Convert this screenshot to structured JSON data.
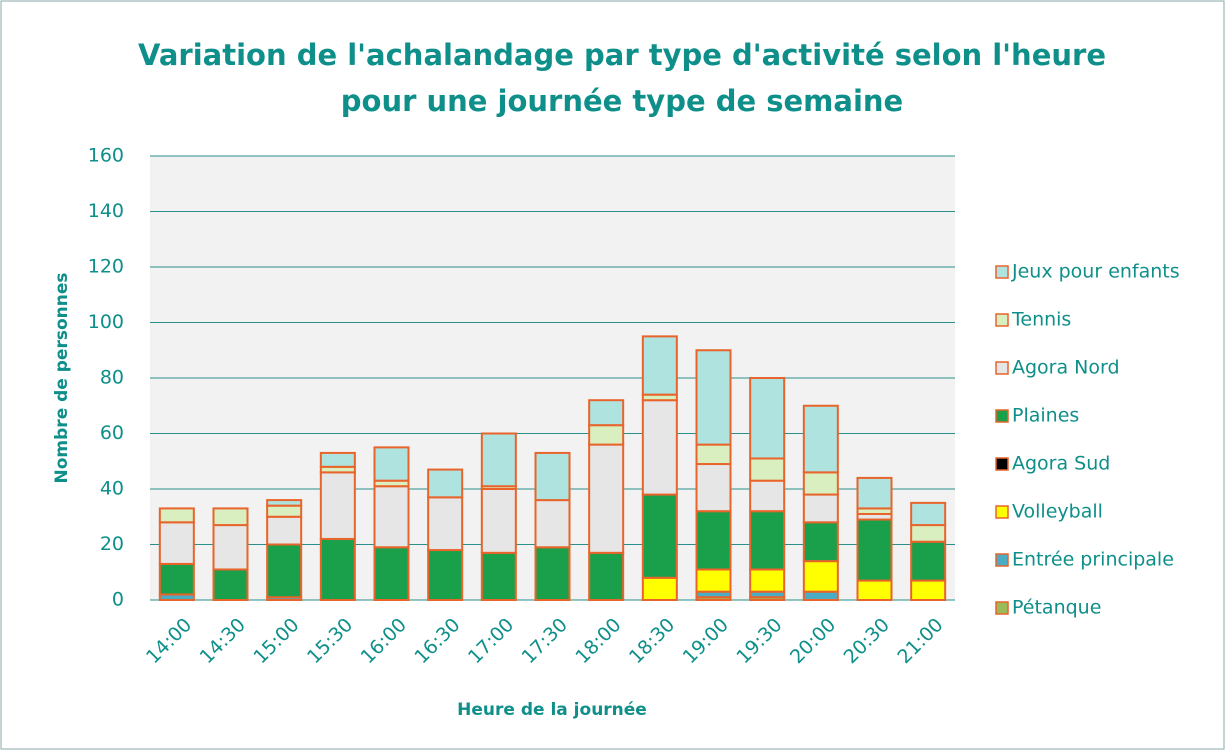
{
  "chart_data": {
    "type": "stacked_bar",
    "title": [
      "Variation de l'achalandage par type d'activité selon l'heure",
      "pour une journée type de semaine"
    ],
    "x_label": "Heure de la journée",
    "y_label": "Nombre de personnes",
    "categories": [
      "14:00",
      "14:30",
      "15:00",
      "15:30",
      "16:00",
      "16:30",
      "17:00",
      "17:30",
      "18:00",
      "18:30",
      "19:00",
      "19:30",
      "20:00",
      "20:30",
      "21:00"
    ],
    "ylim": [
      0,
      160
    ],
    "yticks": [
      0,
      20,
      40,
      60,
      80,
      100,
      120,
      140,
      160
    ],
    "grid": true,
    "legend": "right",
    "edge_color": "#e8642b",
    "series": [
      {
        "name": "Pétanque",
        "color": "#9bbb59",
        "values": [
          0,
          0,
          0,
          0,
          0,
          0,
          0,
          0,
          0,
          0,
          1,
          1,
          0,
          0,
          0
        ]
      },
      {
        "name": "Entrée principale",
        "color": "#4bacc6",
        "values": [
          2,
          0,
          1,
          0,
          0,
          0,
          0,
          0,
          0,
          0,
          2,
          2,
          3,
          0,
          0
        ]
      },
      {
        "name": "Volleyball",
        "color": "#ffff00",
        "values": [
          0,
          0,
          0,
          0,
          0,
          0,
          0,
          0,
          0,
          8,
          8,
          8,
          11,
          7,
          7
        ]
      },
      {
        "name": "Agora Sud",
        "color": "#000000",
        "values": [
          0,
          0,
          0,
          0,
          0,
          0,
          0,
          0,
          0,
          0,
          0,
          0,
          0,
          0,
          0
        ]
      },
      {
        "name": "Plaines",
        "color": "#1aa04a",
        "values": [
          11,
          11,
          19,
          22,
          19,
          18,
          17,
          19,
          17,
          30,
          21,
          21,
          14,
          22,
          14
        ]
      },
      {
        "name": "Agora Nord",
        "color": "#e6e6e6",
        "values": [
          15,
          16,
          10,
          24,
          22,
          19,
          23,
          17,
          39,
          34,
          17,
          11,
          10,
          2,
          0
        ]
      },
      {
        "name": "Tennis",
        "color": "#d9efbf",
        "values": [
          5,
          6,
          4,
          2,
          2,
          0,
          1,
          0,
          7,
          2,
          7,
          8,
          8,
          2,
          6
        ]
      },
      {
        "name": "Jeux pour enfants",
        "color": "#aee3e0",
        "values": [
          0,
          0,
          2,
          5,
          12,
          10,
          19,
          17,
          9,
          21,
          34,
          29,
          24,
          11,
          8
        ]
      }
    ]
  }
}
